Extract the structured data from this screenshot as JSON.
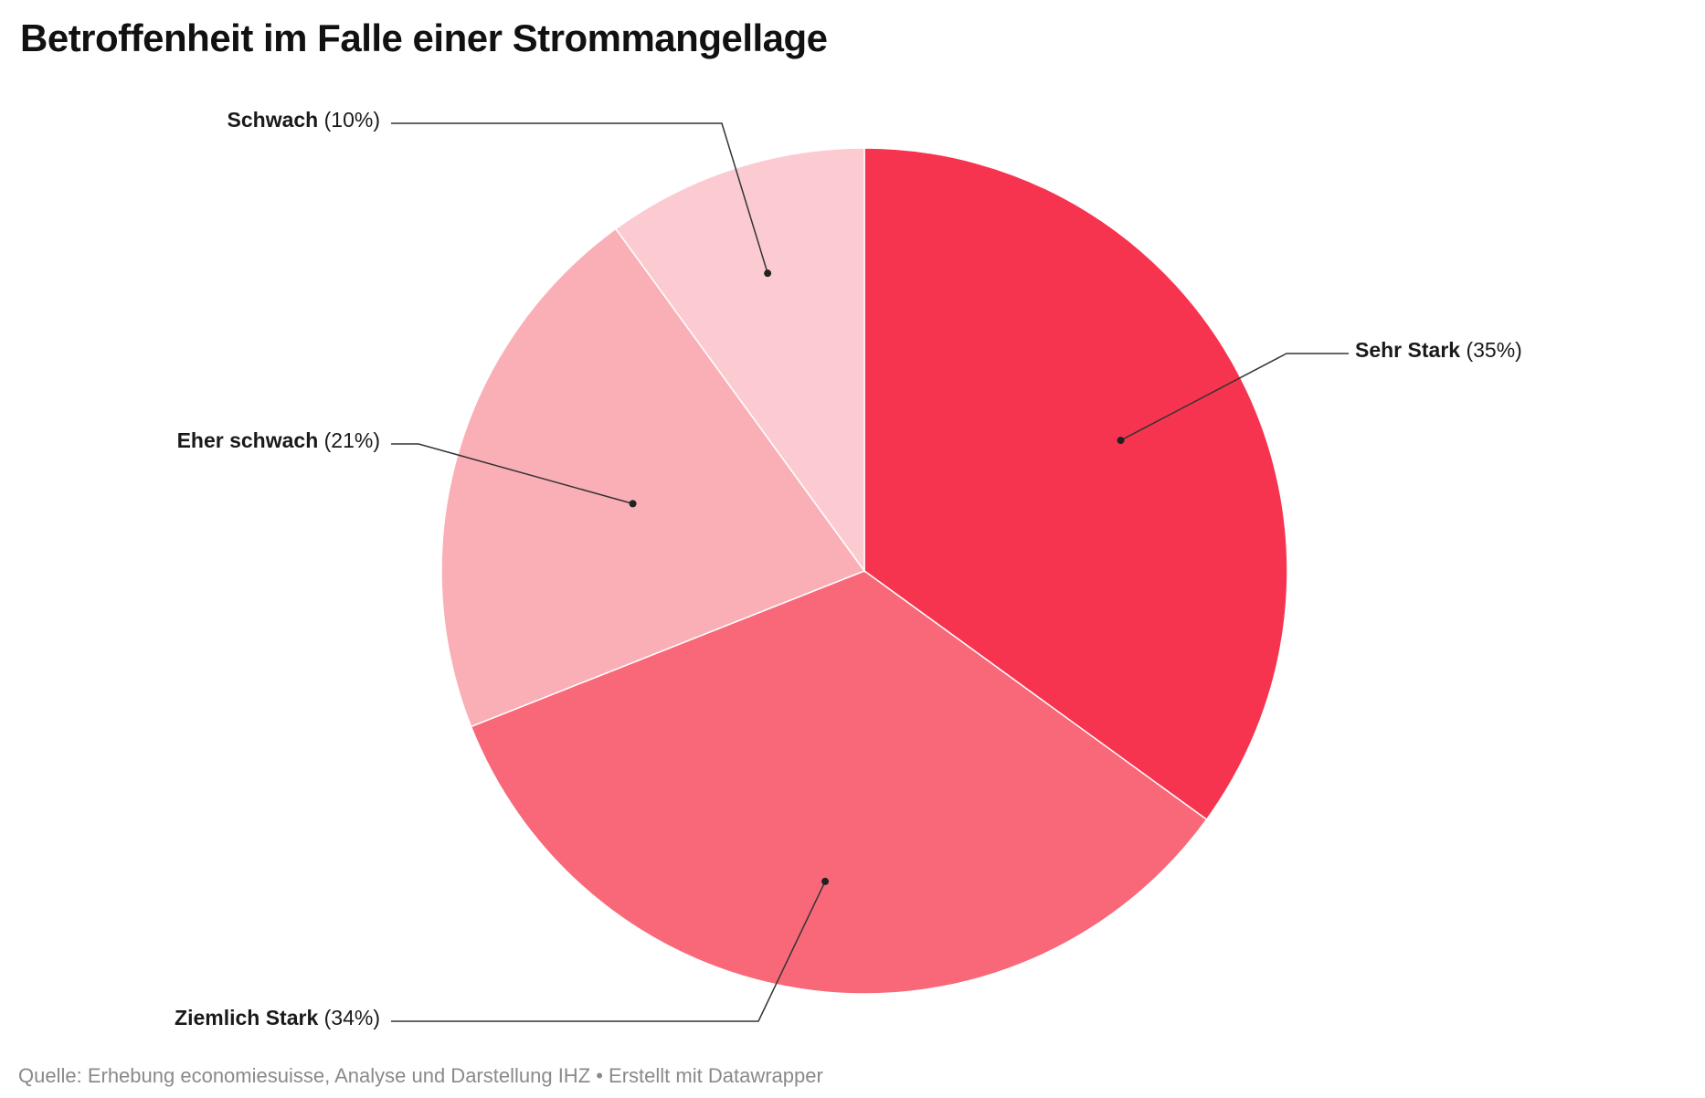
{
  "chart_data": {
    "type": "pie",
    "title": "Betroffenheit im Falle einer Strommangellage",
    "slices": [
      {
        "label": "Sehr Stark",
        "value": 35,
        "display": "(35%)",
        "color": "#f7344f"
      },
      {
        "label": "Ziemlich Stark",
        "value": 34,
        "display": "(34%)",
        "color": "#f96879"
      },
      {
        "label": "Eher schwach",
        "value": 21,
        "display": "(21%)",
        "color": "#faafb7"
      },
      {
        "label": "Schwach",
        "value": 10,
        "display": "(10%)",
        "color": "#fccbd2"
      }
    ],
    "start": "12 o'clock",
    "direction": "clockwise"
  },
  "footer": {
    "source": "Quelle: Erhebung economiesuisse, Analyse und Darstellung IHZ • Erstellt mit Datawrapper"
  }
}
